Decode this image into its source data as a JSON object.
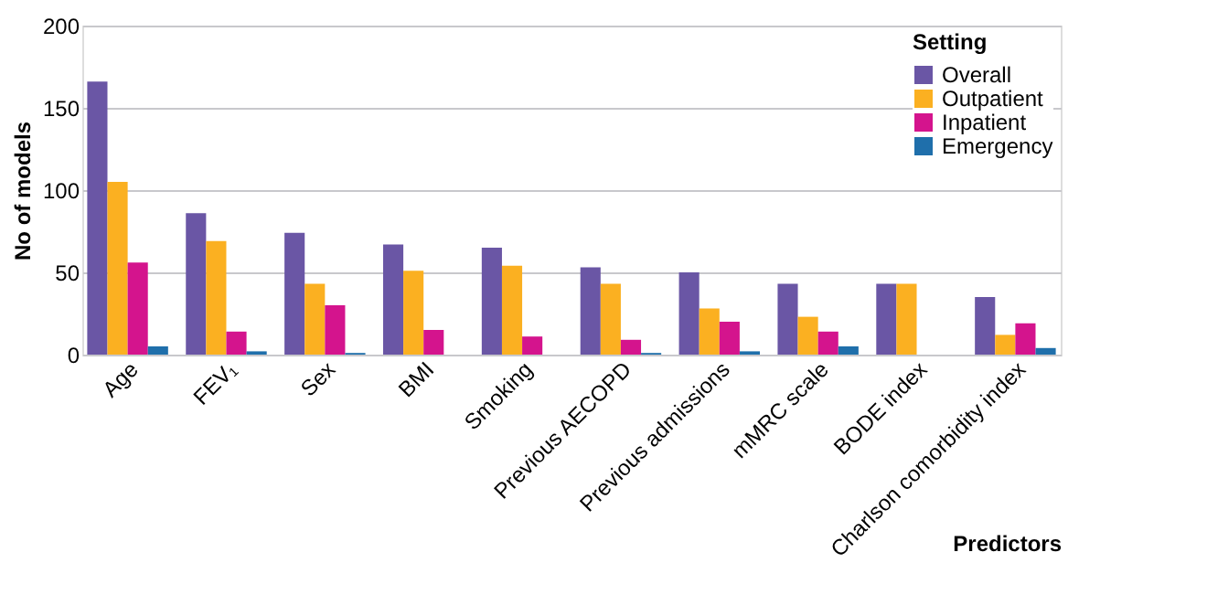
{
  "chart_data": {
    "type": "bar",
    "xlabel": "Predictors",
    "ylabel": "No of models",
    "legend_title": "Setting",
    "categories": [
      "Age",
      "FEV₁",
      "Sex",
      "BMI",
      "Smoking",
      "Previous AECOPD",
      "Previous admissions",
      "mMRC scale",
      "BODE index",
      "Charlson comorbidity index"
    ],
    "series": [
      {
        "name": "Overall",
        "color": "#6a56a5",
        "values": [
          166,
          86,
          74,
          67,
          65,
          53,
          50,
          43,
          43,
          35
        ]
      },
      {
        "name": "Outpatient",
        "color": "#fbb021",
        "values": [
          105,
          69,
          43,
          51,
          54,
          43,
          28,
          23,
          43,
          12
        ]
      },
      {
        "name": "Inpatient",
        "color": "#d4148d",
        "values": [
          56,
          14,
          30,
          15,
          11,
          9,
          20,
          14,
          0,
          19
        ]
      },
      {
        "name": "Emergency",
        "color": "#1f6fab",
        "values": [
          5,
          2,
          1,
          0,
          0,
          1,
          2,
          5,
          0,
          4
        ]
      }
    ],
    "ylim": [
      0,
      200
    ],
    "yticks": [
      0,
      50,
      100,
      150,
      200
    ],
    "grid": "y",
    "legend": "top right"
  }
}
